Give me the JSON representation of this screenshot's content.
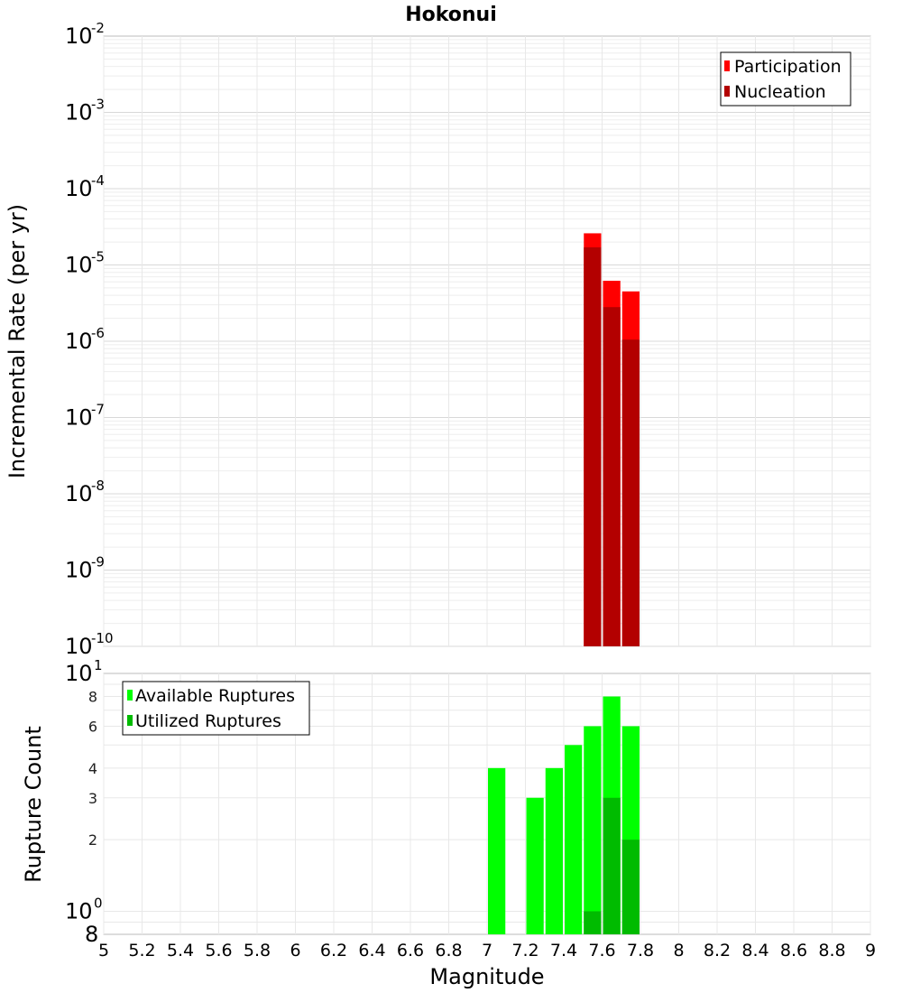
{
  "chart_data": [
    {
      "type": "bar",
      "title": "Hokonui",
      "ylabel": "Incremental Rate (per yr)",
      "xlabel": "",
      "yscale": "log",
      "ylim": [
        1e-10,
        0.01
      ],
      "xlim": [
        5,
        9
      ],
      "y_tick_exponents": [
        -2,
        -3,
        -4,
        -5,
        -6,
        -7,
        -8,
        -9,
        -10
      ],
      "y_tick_base": "10",
      "bar_width": 0.1,
      "x": [
        7.55,
        7.65,
        7.75
      ],
      "series": [
        {
          "name": "Participation",
          "color": "#ff0000",
          "values": [
            2.6e-05,
            6.2e-06,
            4.5e-06
          ]
        },
        {
          "name": "Nucleation",
          "color": "#b30000",
          "values": [
            1.7e-05,
            2.8e-06,
            1.05e-06
          ]
        }
      ],
      "grid": true,
      "legend_position": "top-right"
    },
    {
      "type": "bar",
      "title": "",
      "ylabel": "Rupture Count",
      "xlabel": "Magnitude",
      "yscale": "log",
      "ylim": [
        0.8,
        10
      ],
      "xlim": [
        5,
        9
      ],
      "y_power_ticks": [
        {
          "value": 10,
          "base": "10",
          "exp": "1"
        },
        {
          "value": 1,
          "base": "10",
          "exp": "0"
        }
      ],
      "y_minor_ticks": [
        {
          "value": 8,
          "label": "8"
        },
        {
          "value": 6,
          "label": "6"
        },
        {
          "value": 4,
          "label": "4"
        },
        {
          "value": 3,
          "label": "3"
        },
        {
          "value": 2,
          "label": "2"
        }
      ],
      "y_bottom_label": "8",
      "x_ticks": [
        "5",
        "5.2",
        "5.4",
        "5.6",
        "5.8",
        "6",
        "6.2",
        "6.4",
        "6.6",
        "6.8",
        "7",
        "7.2",
        "7.4",
        "7.6",
        "7.8",
        "8",
        "8.2",
        "8.4",
        "8.6",
        "8.8",
        "9"
      ],
      "bar_width": 0.1,
      "x": [
        7.05,
        7.25,
        7.35,
        7.45,
        7.55,
        7.65,
        7.75
      ],
      "series": [
        {
          "name": "Available Ruptures",
          "color": "#00ff00",
          "values": [
            4,
            3,
            4,
            5,
            6,
            8,
            6
          ]
        },
        {
          "name": "Utilized Ruptures",
          "color": "#00bb00",
          "values": [
            0,
            0,
            0,
            0,
            1,
            3,
            2
          ]
        }
      ],
      "grid": true,
      "legend_position": "top-left"
    }
  ]
}
